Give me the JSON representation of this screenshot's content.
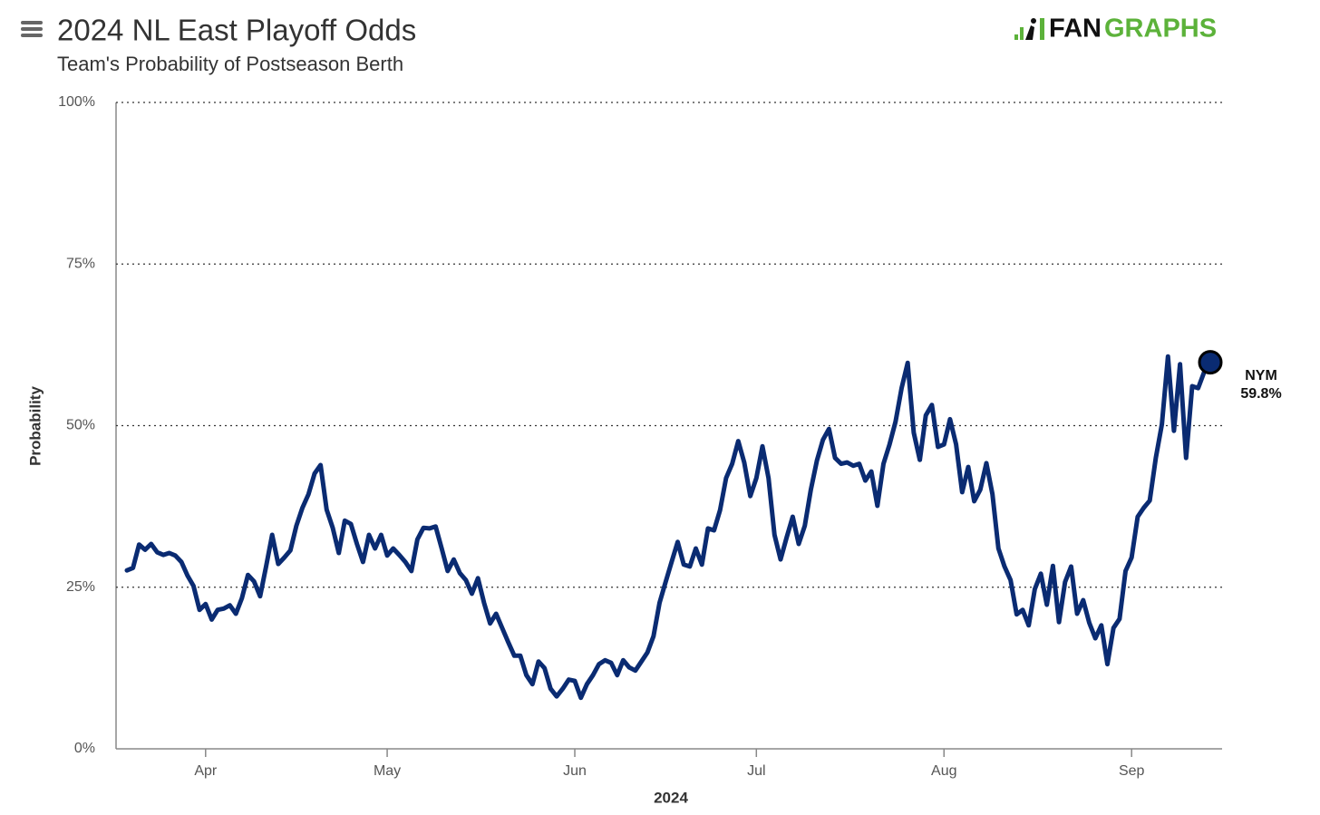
{
  "chart_data": {
    "type": "line",
    "title": "2024 NL East Playoff Odds",
    "subtitle": "Team's Probability of Postseason Berth",
    "logo": [
      "FAN",
      "GRAPHS"
    ],
    "xlabel": "2024",
    "ylabel": "Probability",
    "ylim": [
      0,
      100
    ],
    "yticks": [
      {
        "value": 0,
        "label": "0%"
      },
      {
        "value": 25,
        "label": "25%"
      },
      {
        "value": 50,
        "label": "50%"
      },
      {
        "value": 75,
        "label": "75%"
      },
      {
        "value": 100,
        "label": "100%"
      }
    ],
    "grid": true,
    "categories": [
      null,
      null,
      null,
      null,
      null,
      null,
      null,
      null,
      null,
      null,
      null,
      null,
      null,
      "Apr",
      null,
      null,
      null,
      null,
      null,
      null,
      null,
      null,
      null,
      null,
      null,
      null,
      null,
      null,
      null,
      null,
      null,
      null,
      null,
      null,
      null,
      null,
      null,
      null,
      null,
      null,
      null,
      null,
      null,
      "May",
      null,
      null,
      null,
      null,
      null,
      null,
      null,
      null,
      null,
      null,
      null,
      null,
      null,
      null,
      null,
      null,
      null,
      null,
      null,
      null,
      null,
      null,
      null,
      null,
      null,
      null,
      null,
      null,
      null,
      null,
      "Jun",
      null,
      null,
      null,
      null,
      null,
      null,
      null,
      null,
      null,
      null,
      null,
      null,
      null,
      null,
      null,
      null,
      null,
      null,
      null,
      null,
      null,
      null,
      null,
      null,
      null,
      null,
      null,
      null,
      null,
      "Jul",
      null,
      null,
      null,
      null,
      null,
      null,
      null,
      null,
      null,
      null,
      null,
      null,
      null,
      null,
      null,
      null,
      null,
      null,
      null,
      null,
      null,
      null,
      null,
      null,
      null,
      null,
      null,
      null,
      null,
      null,
      "Aug",
      null,
      null,
      null,
      null,
      null,
      null,
      null,
      null,
      null,
      null,
      null,
      null,
      null,
      null,
      null,
      null,
      null,
      null,
      null,
      null,
      null,
      null,
      null,
      null,
      null,
      null,
      null,
      null,
      null,
      null,
      "Sep",
      null,
      null,
      null,
      null,
      null,
      null,
      null,
      null,
      null,
      null,
      null,
      null,
      null
    ],
    "series": [
      {
        "name": "NYM",
        "color": "#0a2b72",
        "values": [
          27.6,
          28,
          31.6,
          30.8,
          31.7,
          30.4,
          30,
          30.3,
          29.9,
          28.9,
          26.8,
          25.2,
          21.5,
          22.4,
          20,
          21.5,
          21.7,
          22.2,
          20.9,
          23.3,
          26.9,
          25.9,
          23.6,
          28.2,
          33.1,
          28.6,
          29.6,
          30.7,
          34.5,
          37.3,
          39.4,
          42.6,
          43.9,
          37,
          34.2,
          30.3,
          35.3,
          34.8,
          31.7,
          28.9,
          33.1,
          31,
          33.1,
          29.9,
          31,
          30,
          28.9,
          27.5,
          32.4,
          34.2,
          34.1,
          34.4,
          31,
          27.5,
          29.3,
          27.2,
          26.1,
          24,
          26.4,
          22.6,
          19.4,
          20.9,
          18.7,
          16.5,
          14.4,
          14.4,
          11.4,
          10,
          13.5,
          12.5,
          9.3,
          8.1,
          9.3,
          10.7,
          10.5,
          7.9,
          10,
          11.4,
          13.1,
          13.7,
          13.3,
          11.4,
          13.7,
          12.6,
          12.1,
          13.5,
          14.9,
          17.4,
          22.6,
          25.8,
          28.9,
          32,
          28.5,
          28.2,
          31,
          28.5,
          34.1,
          33.8,
          36.9,
          41.9,
          44.1,
          47.6,
          44.3,
          39.1,
          41.9,
          46.8,
          41.9,
          33.1,
          29.3,
          32.7,
          35.9,
          31.7,
          34.5,
          40.1,
          44.6,
          47.8,
          49.5,
          45,
          44.1,
          44.3,
          43.8,
          44.1,
          41.5,
          42.9,
          37.6,
          44.1,
          47.1,
          50.6,
          55.8,
          59.7,
          48.9,
          44.7,
          51.6,
          53.2,
          46.7,
          47.1,
          51,
          47.1,
          39.7,
          43.6,
          38.3,
          40.1,
          44.2,
          39.4,
          31,
          28.2,
          26.1,
          20.8,
          21.5,
          19.1,
          24.7,
          27.1,
          22.3,
          28.3,
          19.6,
          25.8,
          28.2,
          20.9,
          23,
          19.5,
          17.1,
          19.1,
          13.1,
          18.7,
          20.1,
          27.5,
          29.6,
          35.9,
          37.3,
          38.4,
          45,
          50.2,
          60.7,
          49.2,
          59.5,
          45,
          56.1,
          55.8,
          58.3,
          59.8
        ],
        "value_labels": [
          null,
          null,
          null,
          null,
          null,
          null,
          null,
          null,
          null,
          null,
          null,
          null,
          null,
          null,
          null,
          null,
          null,
          null,
          null,
          null,
          null,
          null,
          null,
          null,
          null,
          null,
          null,
          null,
          null,
          null,
          null,
          null,
          null,
          null,
          null,
          null,
          null,
          null,
          null,
          null,
          null,
          null,
          null,
          null,
          null,
          null,
          null,
          null,
          null,
          null,
          null,
          null,
          null,
          null,
          null,
          null,
          null,
          null,
          null,
          null,
          null,
          null,
          null,
          null,
          null,
          null,
          null,
          null,
          null,
          null,
          null,
          null,
          null,
          null,
          null,
          null,
          null,
          null,
          null,
          null,
          null,
          null,
          null,
          null,
          null,
          null,
          null,
          null,
          null,
          null,
          null,
          null,
          null,
          null,
          null,
          null,
          null,
          null,
          null,
          null,
          null,
          null,
          null,
          null,
          null,
          null,
          null,
          null,
          null,
          null,
          null,
          null,
          null,
          null,
          null,
          null,
          null,
          null,
          null,
          null,
          null,
          null,
          null,
          null,
          null,
          null,
          null,
          null,
          null,
          null,
          null,
          null,
          null,
          null,
          null,
          null,
          null,
          null,
          null,
          null,
          null,
          null,
          null,
          null,
          null,
          null,
          null,
          null,
          null,
          null,
          null,
          null,
          null,
          null,
          null,
          null,
          null,
          null,
          null,
          null,
          null,
          null,
          null,
          null,
          null,
          null,
          null,
          null,
          null,
          null,
          null,
          null,
          null,
          null,
          null,
          null,
          null,
          null,
          null,
          "59.8%"
        ]
      }
    ]
  }
}
